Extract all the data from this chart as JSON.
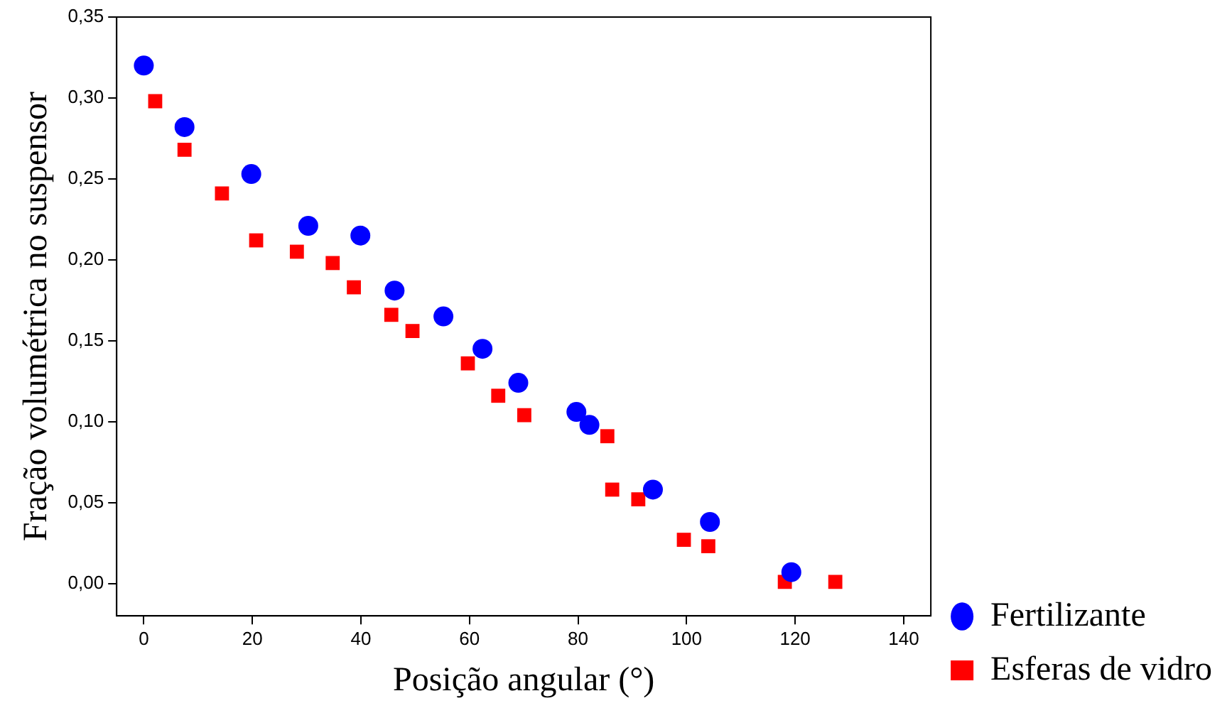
{
  "chart_data": {
    "type": "scatter",
    "xlabel": "Posição angular (°)",
    "ylabel": "Fração volumétrica no suspensor",
    "xlim": [
      -5,
      145
    ],
    "xticks": [
      0,
      20,
      40,
      60,
      80,
      100,
      120,
      140
    ],
    "ylim": [
      -0.02,
      0.35
    ],
    "yticks": [
      {
        "value": 0,
        "label": "0,00"
      },
      {
        "value": 0.05,
        "label": "0,05"
      },
      {
        "value": 0.1,
        "label": "0,10"
      },
      {
        "value": 0.15,
        "label": "0,15"
      },
      {
        "value": 0.2,
        "label": "0,20"
      },
      {
        "value": 0.25,
        "label": "0,25"
      },
      {
        "value": 0.3,
        "label": "0,30"
      },
      {
        "value": 0.35,
        "label": "0,35"
      }
    ],
    "grid": false,
    "legend": "right",
    "series": [
      {
        "name": "Fertilizante",
        "color": "#0000ff",
        "marker": "circle",
        "x": [
          0,
          7.5,
          19.8,
          30.3,
          39.9,
          46.2,
          55.2,
          62.4,
          69,
          79.7,
          82.1,
          93.8,
          104.3,
          119.3
        ],
        "values": [
          0.32,
          0.282,
          0.253,
          0.221,
          0.215,
          0.181,
          0.165,
          0.145,
          0.124,
          0.106,
          0.098,
          0.058,
          0.038,
          0.007
        ]
      },
      {
        "name": "Esferas de vidro",
        "color": "#ff0000",
        "marker": "square",
        "x": [
          2.1,
          7.5,
          14.4,
          20.7,
          28.2,
          34.8,
          38.7,
          45.6,
          49.5,
          59.7,
          65.3,
          70.1,
          85.4,
          86.3,
          91.1,
          99.5,
          104,
          118.1,
          127.4
        ],
        "values": [
          0.298,
          0.268,
          0.241,
          0.212,
          0.205,
          0.198,
          0.183,
          0.166,
          0.156,
          0.136,
          0.116,
          0.104,
          0.091,
          0.058,
          0.052,
          0.027,
          0.023,
          0.001,
          0.001
        ]
      }
    ]
  }
}
